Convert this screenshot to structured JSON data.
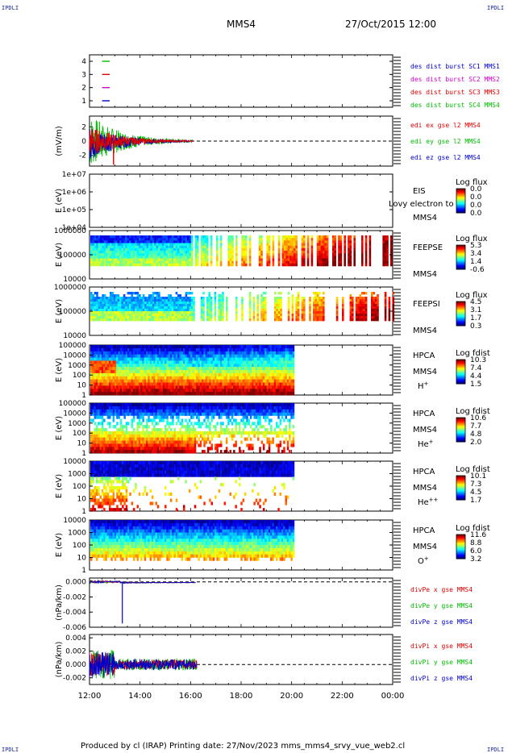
{
  "corners": {
    "tl": "IPDLI",
    "tr": "IPDLI",
    "bl": "IPDLI",
    "br": "IPDLI"
  },
  "header": {
    "title": "MMS4",
    "datetime": "27/Oct/2015 12:00"
  },
  "footer": "Produced by cl (IRAP)   Printing date: 27/Nov/2023   mms_mms4_srvy_vue_web2.cl",
  "colors": {
    "mms1": "#0000cc",
    "mms2": "#cc00cc",
    "mms3": "#dd0000",
    "mms4": "#00bb00",
    "x": "#dd0000",
    "y": "#00bb00",
    "z": "#0000cc"
  },
  "x_axis": {
    "ticks": [
      "12:00",
      "14:00",
      "16:00",
      "18:00",
      "20:00",
      "22:00",
      "00:00"
    ]
  },
  "chart_data": [
    {
      "type": "line",
      "title": "",
      "ylabel": "",
      "ylim": [
        0.5,
        4.5
      ],
      "yticks": [
        "1",
        "2",
        "3",
        "4"
      ],
      "legend": [
        {
          "text": "des dist burst SC1 MMS1",
          "color": "#0000cc"
        },
        {
          "text": "des dist burst SC2 MMS2",
          "color": "#cc00cc"
        },
        {
          "text": "des dist burst SC3 MMS3",
          "color": "#dd0000"
        },
        {
          "text": "des dist burst SC4 MMS4",
          "color": "#00bb00"
        }
      ],
      "series": [
        {
          "level": 4,
          "color": "#00bb00",
          "start": 12.5,
          "end": 12.8
        },
        {
          "level": 3,
          "color": "#dd0000",
          "start": 12.5,
          "end": 12.8
        },
        {
          "level": 2,
          "color": "#cc00cc",
          "start": 12.5,
          "end": 12.8
        },
        {
          "level": 1,
          "color": "#0000cc",
          "start": 12.5,
          "end": 12.8
        }
      ]
    },
    {
      "type": "line",
      "ylabel": "(mV/m)",
      "ylim": [
        -3.5,
        3.5
      ],
      "yticks": [
        "2",
        "0",
        "-2"
      ],
      "legend": [
        {
          "text": "edi ex gse l2 MMS4",
          "color": "#dd0000"
        },
        {
          "text": "edi ey gse l2 MMS4",
          "color": "#00bb00"
        },
        {
          "text": "edi ez gse l2 MMS4",
          "color": "#0000cc"
        }
      ],
      "data_range_hours": [
        12.0,
        16.1
      ]
    },
    {
      "type": "heatmap",
      "ylabel": "E (eV)",
      "yticks": [
        "1e+07",
        "1e+06",
        "1e+05",
        "1e+04"
      ],
      "labels": [
        "EIS",
        "MMS4"
      ],
      "overlay_text": "Lovy electron to",
      "colorbar": {
        "title": "Log flux",
        "ticks": [
          "0.0",
          "0.0",
          "0.0",
          "0.0"
        ]
      },
      "empty": true
    },
    {
      "type": "heatmap",
      "ylabel": "E (eV)",
      "yticks": [
        "1000000",
        "100000",
        "10000"
      ],
      "labels": [
        "FEEPSE",
        "MMS4"
      ],
      "colorbar": {
        "title": "Log flux",
        "ticks": [
          "5.3",
          "3.4",
          "1.4",
          "-0.6"
        ]
      }
    },
    {
      "type": "heatmap",
      "ylabel": "E (eV)",
      "yticks": [
        "1000000",
        "100000",
        "10000"
      ],
      "labels": [
        "FEEPSI",
        "MMS4"
      ],
      "colorbar": {
        "title": "Log flux",
        "ticks": [
          "4.5",
          "3.1",
          "1.7",
          "0.3"
        ]
      }
    },
    {
      "type": "heatmap",
      "ylabel": "E (eV)",
      "yticks": [
        "100000",
        "10000",
        "1000",
        "100",
        "10",
        "1"
      ],
      "labels": [
        "HPCA",
        "MMS4",
        "H+"
      ],
      "colorbar": {
        "title": "Log fdist",
        "ticks": [
          "10.3",
          "7.4",
          "4.4",
          "1.5"
        ]
      }
    },
    {
      "type": "heatmap",
      "ylabel": "E (eV)",
      "yticks": [
        "100000",
        "10000",
        "1000",
        "100",
        "10",
        "1"
      ],
      "labels": [
        "HPCA",
        "MMS4",
        "He+"
      ],
      "colorbar": {
        "title": "Log fdist",
        "ticks": [
          "10.6",
          "7.7",
          "4.8",
          "2.0"
        ]
      }
    },
    {
      "type": "heatmap",
      "ylabel": "E (eV)",
      "yticks": [
        "10000",
        "1000",
        "100",
        "10",
        "1"
      ],
      "labels": [
        "HPCA",
        "MMS4",
        "He++"
      ],
      "colorbar": {
        "title": "Log fdist",
        "ticks": [
          "10.1",
          "7.3",
          "4.5",
          "1.7"
        ]
      }
    },
    {
      "type": "heatmap",
      "ylabel": "E (eV)",
      "yticks": [
        "10000",
        "1000",
        "100",
        "10",
        "1"
      ],
      "labels": [
        "HPCA",
        "MMS4",
        "O+"
      ],
      "colorbar": {
        "title": "Log fdist",
        "ticks": [
          "11.6",
          "8.8",
          "6.0",
          "3.2"
        ]
      }
    },
    {
      "type": "line",
      "ylabel": "(nPa/km)",
      "ylim": [
        -0.006,
        0.0005
      ],
      "yticks": [
        "0.000",
        "-0.002",
        "-0.004",
        "-0.006"
      ],
      "legend": [
        {
          "text": "divPe x gse MMS4",
          "color": "#dd0000"
        },
        {
          "text": "divPe y gse MMS4",
          "color": "#00bb00"
        },
        {
          "text": "divPe z gse MMS4",
          "color": "#0000cc"
        }
      ]
    },
    {
      "type": "line",
      "ylabel": "(nPa/km)",
      "ylim": [
        -0.003,
        0.0045
      ],
      "yticks": [
        "0.004",
        "0.002",
        "0.000",
        "-0.002"
      ],
      "legend": [
        {
          "text": "divPi x gse MMS4",
          "color": "#dd0000"
        },
        {
          "text": "divPi y gse MMS4",
          "color": "#00bb00"
        },
        {
          "text": "divPi z gse MMS4",
          "color": "#0000cc"
        }
      ]
    }
  ]
}
